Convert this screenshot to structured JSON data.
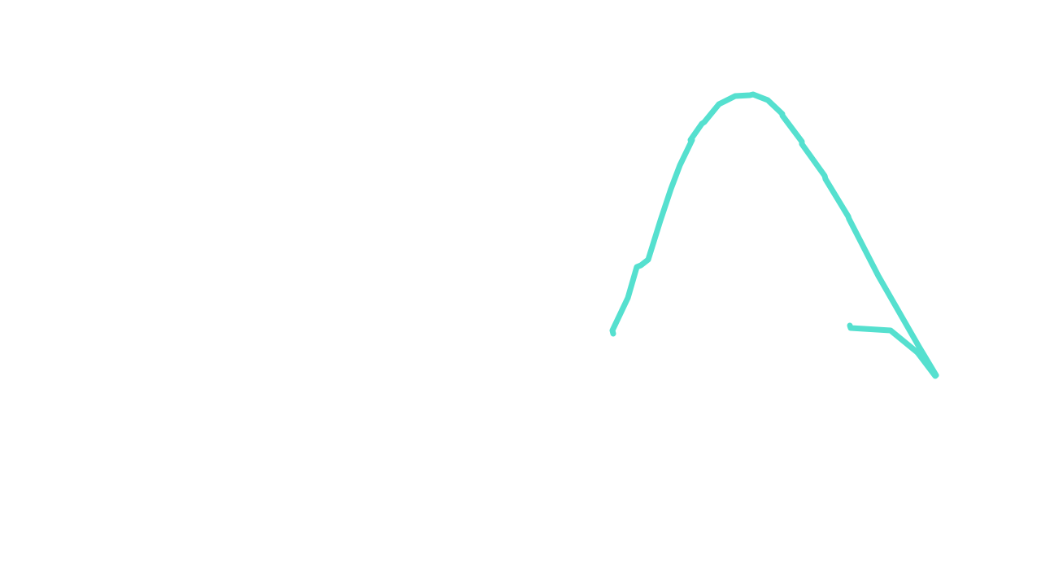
{
  "canvas": {
    "background_color": "#ffffff",
    "stroke_color": "#55e0cf"
  }
}
